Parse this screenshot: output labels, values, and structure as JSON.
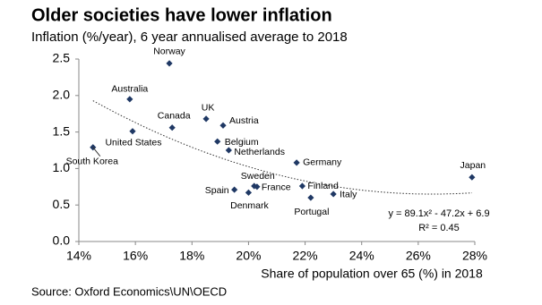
{
  "chart_data": {
    "type": "scatter",
    "title": "Older societies have lower inflation",
    "subtitle": "Inflation (%/year), 6 year annualised average to 2018",
    "x_label": "Share of population over 65 (%) in 2018",
    "source": "Source: Oxford Economics\\UN\\OECD",
    "color": "#1f3864",
    "labels": [
      "Norway",
      "Australia",
      "Canada",
      "United States",
      "South Korea",
      "UK",
      "Austria",
      "Belgium",
      "Netherlands",
      "Germany",
      "Sweden",
      "France",
      "Spain",
      "Denmark",
      "Finland",
      "Portugal",
      "Italy",
      "Japan"
    ],
    "x": [
      17.2,
      15.8,
      17.3,
      15.9,
      14.5,
      18.5,
      19.1,
      18.9,
      19.3,
      21.7,
      20.2,
      20.3,
      19.5,
      20.0,
      21.9,
      22.2,
      23.0,
      27.9
    ],
    "values": [
      2.44,
      1.95,
      1.56,
      1.51,
      1.29,
      1.68,
      1.59,
      1.37,
      1.25,
      1.08,
      0.76,
      0.75,
      0.71,
      0.67,
      0.76,
      0.6,
      0.65,
      0.88
    ],
    "xlim": [
      14,
      28
    ],
    "ylim": [
      0,
      2.5
    ],
    "xticks": [
      {
        "value": 14,
        "label": "14%"
      },
      {
        "value": 16,
        "label": "16%"
      },
      {
        "value": 18,
        "label": "18%"
      },
      {
        "value": 20,
        "label": "20%"
      },
      {
        "value": 22,
        "label": "22%"
      },
      {
        "value": 24,
        "label": "24%"
      },
      {
        "value": 26,
        "label": "26%"
      },
      {
        "value": 28,
        "label": "28%"
      }
    ],
    "yticks": [
      {
        "value": 0,
        "label": "0.0"
      },
      0.5,
      {
        "value": 1,
        "label": "1.0"
      },
      1.5,
      {
        "value": 2,
        "label": "2.0"
      },
      2.5
    ],
    "trendline": {
      "coefficients": [
        89.1,
        -47.2,
        6.9
      ],
      "equation": "y = 89.1x² - 47.2x + 6.9",
      "r_squared": "R² = 0.45"
    }
  }
}
